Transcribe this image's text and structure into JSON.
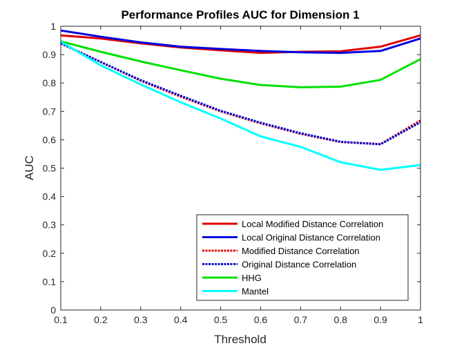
{
  "chart_data": {
    "type": "line",
    "title": "Performance Profiles AUC for Dimension 1",
    "xlabel": "Threshold",
    "ylabel": "AUC",
    "xlim": [
      0.1,
      1
    ],
    "ylim": [
      0,
      1
    ],
    "xticks": [
      0.1,
      0.2,
      0.3,
      0.4,
      0.5,
      0.6,
      0.7,
      0.8,
      0.9,
      1
    ],
    "xtick_labels": [
      "0.1",
      "0.2",
      "0.3",
      "0.4",
      "0.5",
      "0.6",
      "0.7",
      "0.8",
      "0.9",
      "1"
    ],
    "yticks": [
      0,
      0.1,
      0.2,
      0.3,
      0.4,
      0.5,
      0.6,
      0.7,
      0.8,
      0.9,
      1
    ],
    "ytick_labels": [
      "0",
      "0.1",
      "0.2",
      "0.3",
      "0.4",
      "0.5",
      "0.6",
      "0.7",
      "0.8",
      "0.9",
      "1"
    ],
    "grid": false,
    "legend_position": "bottom-right",
    "x": [
      0.1,
      0.2,
      0.3,
      0.4,
      0.5,
      0.6,
      0.7,
      0.8,
      0.9,
      1.0
    ],
    "series": [
      {
        "name": "Local Modified Distance Correlation",
        "color": "#e00000",
        "style": "solid",
        "values": [
          0.968,
          0.957,
          0.94,
          0.925,
          0.915,
          0.906,
          0.91,
          0.912,
          0.928,
          0.968
        ]
      },
      {
        "name": "Local Original Distance Correlation",
        "color": "#0000e0",
        "style": "solid",
        "values": [
          0.985,
          0.963,
          0.943,
          0.928,
          0.92,
          0.913,
          0.908,
          0.906,
          0.913,
          0.957
        ]
      },
      {
        "name": "Modified Distance Correlation",
        "color": "#e00000",
        "style": "dashed",
        "values": [
          0.94,
          0.874,
          0.808,
          0.752,
          0.7,
          0.658,
          0.621,
          0.592,
          0.585,
          0.668
        ]
      },
      {
        "name": "Original Distance Correlation",
        "color": "#0000cc",
        "style": "dashed",
        "values": [
          0.94,
          0.874,
          0.81,
          0.755,
          0.702,
          0.66,
          0.623,
          0.593,
          0.584,
          0.662
        ]
      },
      {
        "name": "HHG",
        "color": "#00e000",
        "style": "solid",
        "values": [
          0.947,
          0.91,
          0.876,
          0.845,
          0.815,
          0.793,
          0.785,
          0.787,
          0.811,
          0.884
        ]
      },
      {
        "name": "Mantel",
        "color": "#00ffff",
        "style": "solid",
        "values": [
          0.946,
          0.862,
          0.795,
          0.732,
          0.675,
          0.612,
          0.575,
          0.521,
          0.494,
          0.511
        ]
      }
    ]
  }
}
